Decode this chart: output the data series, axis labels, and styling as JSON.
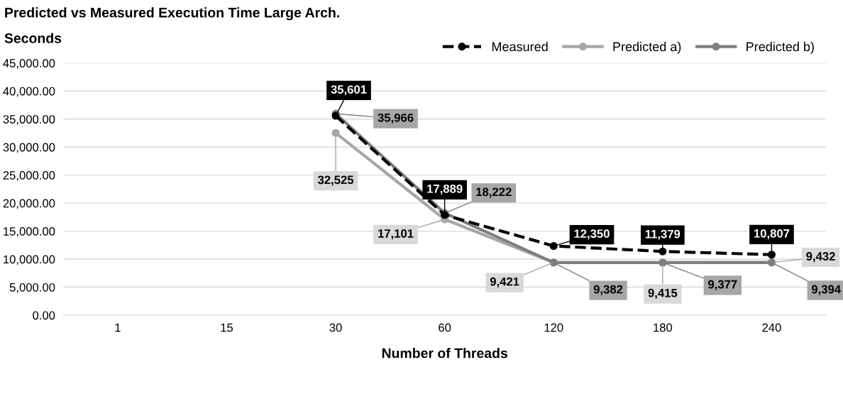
{
  "chart_data": {
    "type": "line",
    "title": "Predicted vs Measured Execution Time Large Arch.",
    "ylabel": "Seconds",
    "xlabel": "Number of Threads",
    "categories": [
      "1",
      "15",
      "30",
      "60",
      "120",
      "180",
      "240"
    ],
    "series": [
      {
        "name": "Measured",
        "color": "#000000",
        "line_style": "dashed",
        "values": [
          null,
          null,
          35601,
          17889,
          12350,
          11379,
          10807
        ],
        "value_labels": [
          null,
          null,
          "35,601",
          "17,889",
          "12,350",
          "11,379",
          "10,807"
        ]
      },
      {
        "name": "Predicted a)",
        "color": "#a6a6a6",
        "line_style": "solid",
        "values": [
          null,
          null,
          32525,
          17101,
          9421,
          9415,
          9432
        ],
        "value_labels": [
          null,
          null,
          "32,525",
          "17,101",
          "9,421",
          "9,415",
          "9,432"
        ]
      },
      {
        "name": "Predicted b)",
        "color": "#7f7f7f",
        "line_style": "solid",
        "values": [
          null,
          null,
          35966,
          18222,
          9382,
          9377,
          9394
        ],
        "value_labels": [
          null,
          null,
          "35,966",
          "18,222",
          "9,382",
          "9,377",
          "9,394"
        ]
      }
    ],
    "ylim": [
      0,
      45000
    ],
    "yticks": [
      {
        "value": 0,
        "label": "0.00"
      },
      {
        "value": 5000,
        "label": "5,000.00"
      },
      {
        "value": 10000,
        "label": "10,000.00"
      },
      {
        "value": 15000,
        "label": "15,000.00"
      },
      {
        "value": 20000,
        "label": "20,000.00"
      },
      {
        "value": 25000,
        "label": "25,000.00"
      },
      {
        "value": 30000,
        "label": "30,000.00"
      },
      {
        "value": 35000,
        "label": "35,000.00"
      },
      {
        "value": 40000,
        "label": "40,000.00"
      },
      {
        "value": 45000,
        "label": "45,000.00"
      }
    ],
    "grid": "y",
    "legend": "top right",
    "marker": "circle"
  }
}
